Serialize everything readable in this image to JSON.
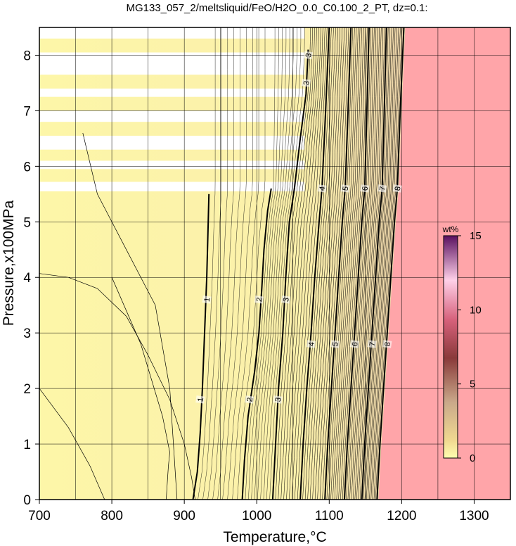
{
  "chart_data": {
    "type": "heatmap",
    "title": "MG133_057_2/meltsliquid/FeO/H2O_0.0_C0.100_2_PT, dz=0.1:",
    "xlabel": "Temperature,°C",
    "ylabel": "Pressure,x100MPa",
    "xlim": [
      700,
      1350
    ],
    "ylim": [
      0,
      8.5
    ],
    "xticks": [
      "700",
      "800",
      "900",
      "1000",
      "1100",
      "1200",
      "1300"
    ],
    "yticks": [
      "0",
      "1",
      "2",
      "3",
      "4",
      "5",
      "6",
      "7",
      "8"
    ],
    "grid": true,
    "colorbar": {
      "label": "wt%",
      "range": [
        0,
        15
      ],
      "ticks": [
        "0",
        "5",
        "10",
        "15"
      ],
      "placement": "right-inside"
    },
    "colors": {
      "low": "#fdf6a8",
      "mid": "#e8c4a8",
      "high": "#ffa5a9",
      "top": "#ffffff"
    },
    "contour_interval": 0.1,
    "major_contours": [
      {
        "level": 1,
        "label": "1",
        "points": [
          [
            912,
            0
          ],
          [
            918,
            0.5
          ],
          [
            922,
            1.2
          ],
          [
            925,
            2
          ],
          [
            928,
            3
          ],
          [
            931,
            4
          ],
          [
            933,
            5
          ],
          [
            934,
            5.5
          ]
        ]
      },
      {
        "level": 2,
        "label": "2",
        "points": [
          [
            980,
            0
          ],
          [
            983,
            0.7
          ],
          [
            988,
            1.5
          ],
          [
            997,
            2.3
          ],
          [
            1003,
            3
          ],
          [
            1007,
            3.8
          ],
          [
            1010,
            4.5
          ],
          [
            1015,
            5.2
          ],
          [
            1020,
            5.6
          ]
        ]
      },
      {
        "level": 3,
        "label": "3",
        "points": [
          [
            1022,
            0
          ],
          [
            1026,
            1
          ],
          [
            1030,
            2
          ],
          [
            1036,
            3
          ],
          [
            1040,
            4
          ],
          [
            1045,
            5
          ],
          [
            1052,
            5.6
          ],
          [
            1060,
            6.5
          ],
          [
            1068,
            7.3
          ],
          [
            1071,
            8.1
          ]
        ]
      },
      {
        "level": 4,
        "label": "4",
        "points": [
          [
            1060,
            0
          ],
          [
            1064,
            1
          ],
          [
            1069,
            2
          ],
          [
            1075,
            3
          ],
          [
            1080,
            4
          ],
          [
            1086,
            5
          ],
          [
            1090,
            5.6
          ],
          [
            1095,
            7
          ],
          [
            1100,
            8.5
          ]
        ]
      },
      {
        "level": 5,
        "label": "5",
        "points": [
          [
            1094,
            0
          ],
          [
            1098,
            1
          ],
          [
            1103,
            2
          ],
          [
            1108,
            3
          ],
          [
            1113,
            4
          ],
          [
            1118,
            5
          ],
          [
            1122,
            5.6
          ],
          [
            1126,
            7
          ],
          [
            1130,
            8.5
          ]
        ]
      },
      {
        "level": 6,
        "label": "6",
        "points": [
          [
            1121,
            0
          ],
          [
            1125,
            1
          ],
          [
            1130,
            2
          ],
          [
            1135,
            3
          ],
          [
            1140,
            4
          ],
          [
            1145,
            5
          ],
          [
            1149,
            5.6
          ],
          [
            1152,
            7
          ],
          [
            1155,
            8.5
          ]
        ]
      },
      {
        "level": 7,
        "label": "7",
        "points": [
          [
            1145,
            0
          ],
          [
            1149,
            1
          ],
          [
            1154,
            2
          ],
          [
            1159,
            3
          ],
          [
            1164,
            4
          ],
          [
            1169,
            5
          ],
          [
            1173,
            5.6
          ],
          [
            1176,
            7
          ],
          [
            1179,
            8.5
          ]
        ]
      },
      {
        "level": 8,
        "label": "8",
        "points": [
          [
            1166,
            0
          ],
          [
            1170,
            1
          ],
          [
            1175,
            2
          ],
          [
            1180,
            3
          ],
          [
            1185,
            4
          ],
          [
            1190,
            5
          ],
          [
            1194,
            5.6
          ],
          [
            1198,
            7
          ],
          [
            1203,
            8.5
          ]
        ]
      }
    ],
    "contour_labels": [
      {
        "text": "1",
        "x": 922,
        "y": 1.8
      },
      {
        "text": "1",
        "x": 931,
        "y": 3.6
      },
      {
        "text": "2",
        "x": 990,
        "y": 1.8
      },
      {
        "text": "2",
        "x": 1003,
        "y": 3.6
      },
      {
        "text": "3",
        "x": 1029,
        "y": 1.8
      },
      {
        "text": "3",
        "x": 1040,
        "y": 3.6
      },
      {
        "text": "4",
        "x": 1075,
        "y": 2.8
      },
      {
        "text": "5",
        "x": 1108,
        "y": 2.8
      },
      {
        "text": "6",
        "x": 1135,
        "y": 2.8
      },
      {
        "text": "7",
        "x": 1159,
        "y": 2.8
      },
      {
        "text": "8",
        "x": 1180,
        "y": 2.8
      },
      {
        "text": "4",
        "x": 1090,
        "y": 5.6
      },
      {
        "text": "5",
        "x": 1122,
        "y": 5.6
      },
      {
        "text": "6",
        "x": 1149,
        "y": 5.6
      },
      {
        "text": "7",
        "x": 1173,
        "y": 5.6
      },
      {
        "text": "8",
        "x": 1194,
        "y": 5.6
      },
      {
        "text": "3",
        "x": 1068,
        "y": 7.5
      },
      {
        "text": "3",
        "x": 1071,
        "y": 8.0
      }
    ]
  }
}
